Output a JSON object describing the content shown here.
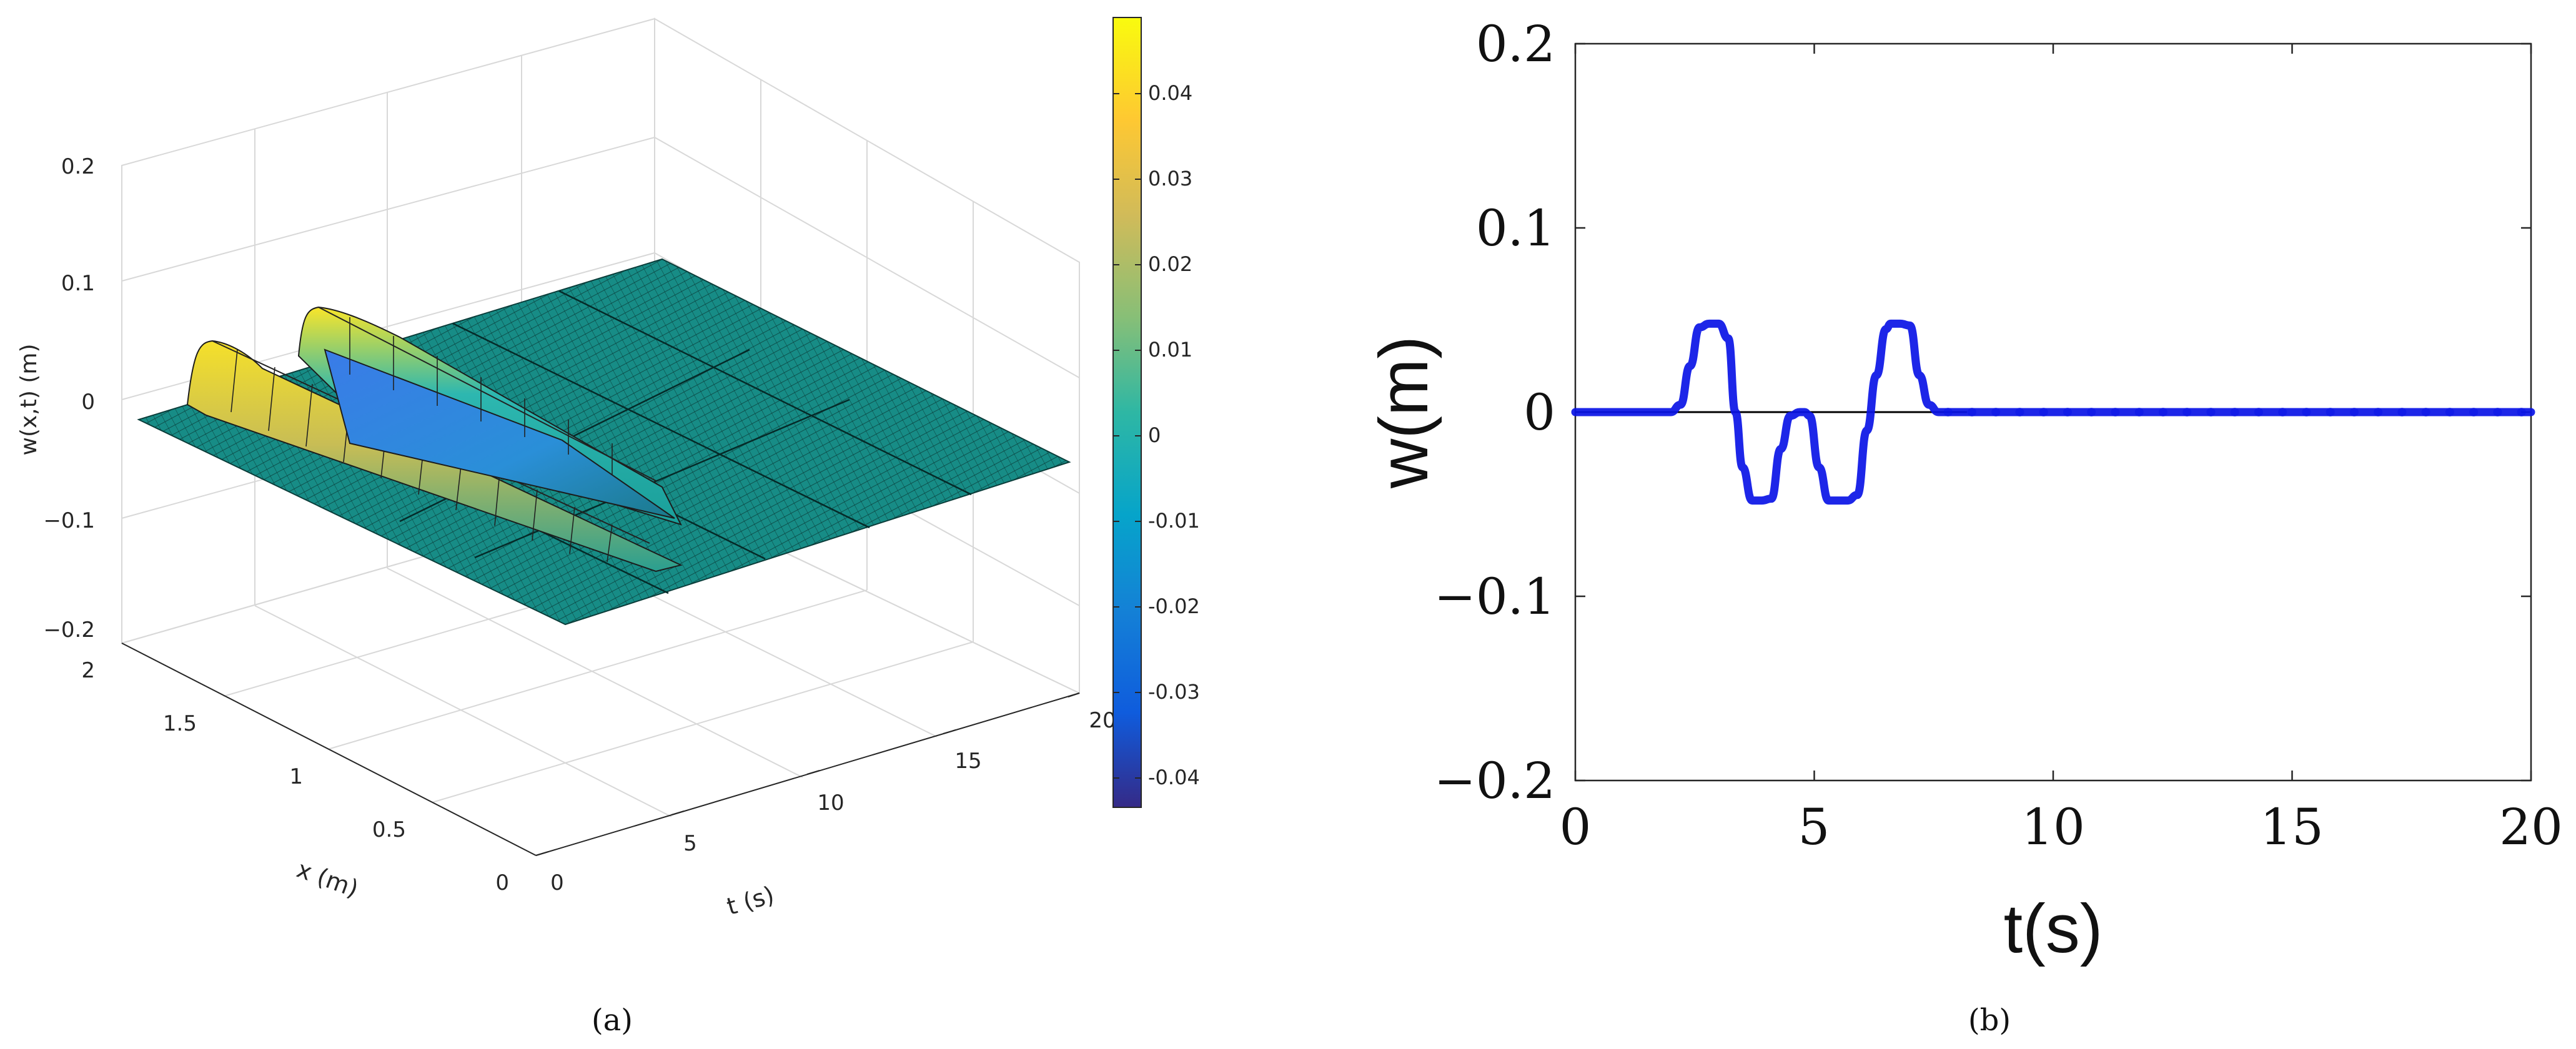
{
  "figure": {
    "caption_a": "(a)",
    "caption_b": "(b)"
  },
  "chart_data": [
    {
      "type": "surface",
      "title": "",
      "zlabel": "w(x,t) (m)",
      "xlabel": "x (m)",
      "tlabel": "t (s)",
      "zticks": [
        "0.2",
        "0.1",
        "0",
        "−0.1",
        "−0.2"
      ],
      "zlim": [
        -0.2,
        0.2
      ],
      "xticks": [
        "2",
        "1.5",
        "1",
        "0.5",
        "0"
      ],
      "xlim": [
        0,
        2
      ],
      "tticks": [
        "0",
        "5",
        "10",
        "15",
        "20"
      ],
      "tlim": [
        0,
        20
      ],
      "colorbar": {
        "colormap": "parula",
        "ticks": [
          "0.04",
          "0.03",
          "0.02",
          "0.01",
          "0",
          "-0.01",
          "-0.02",
          "-0.03",
          "-0.04"
        ],
        "range": [
          -0.048,
          0.048
        ]
      },
      "surface_description_values": {
        "pulse_1": {
          "t_center": 2.8,
          "w_peak": 0.048
        },
        "pulse_2": {
          "t_center": 4.0,
          "w_peak": 0.048
        }
      }
    },
    {
      "type": "line",
      "title": "",
      "xlabel": "t(s)",
      "ylabel": "w(m)",
      "xlim": [
        0,
        20
      ],
      "ylim": [
        -0.2,
        0.2
      ],
      "xticks": [
        "0",
        "5",
        "10",
        "15",
        "20"
      ],
      "yticks": [
        "0.2",
        "0.1",
        "0",
        "−0.1",
        "−0.2"
      ],
      "series": [
        {
          "color": "#0a14e6",
          "x": [
            0,
            2.0,
            2.2,
            2.4,
            2.6,
            2.8,
            3.0,
            3.2,
            3.35,
            3.5,
            3.7,
            3.9,
            4.1,
            4.3,
            4.5,
            4.7,
            4.8,
            4.9,
            5.1,
            5.3,
            5.5,
            5.7,
            5.9,
            6.1,
            6.3,
            6.5,
            6.6,
            6.8,
            7.0,
            7.2,
            7.4,
            7.6,
            7.8,
            20
          ],
          "y": [
            0,
            0,
            0.004,
            0.025,
            0.046,
            0.048,
            0.048,
            0.04,
            0.0,
            -0.03,
            -0.048,
            -0.048,
            -0.047,
            -0.02,
            -0.002,
            0.0,
            0.0,
            -0.002,
            -0.03,
            -0.048,
            -0.048,
            -0.048,
            -0.045,
            -0.01,
            0.02,
            0.045,
            0.048,
            0.048,
            0.047,
            0.02,
            0.004,
            0.0,
            0.0,
            0.0
          ]
        }
      ],
      "reference_line": {
        "y": 0,
        "color": "#000000"
      }
    }
  ]
}
